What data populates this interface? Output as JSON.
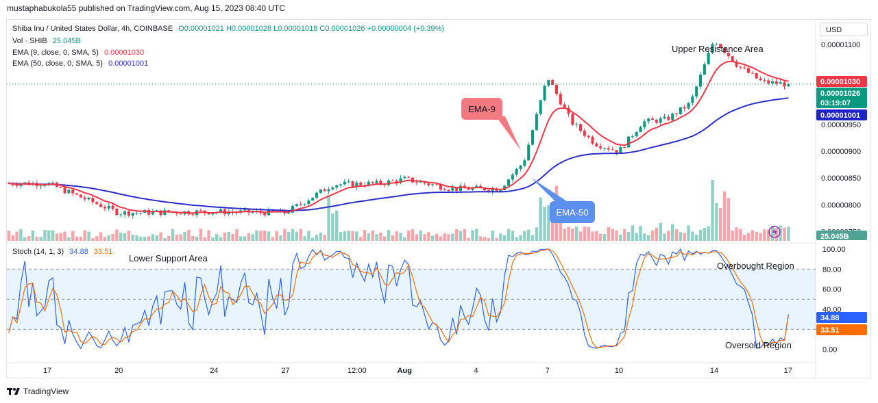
{
  "header": {
    "caption": "mustaphabukola55 published on TradingView.com, Aug 15, 2023 08:40 UTC"
  },
  "legend": {
    "symbol": "Shiba Inu / United States Dollar, 4h, COINBASE",
    "open": "O0.00001021",
    "high": "H0.00001028",
    "low": "L0.00001018",
    "close": "C0.00001026",
    "change": "+0.00000004 (+0.39%)",
    "vol_label": "Vol · SHIB",
    "vol_value": "25.045B",
    "ema9_label": "EMA (9, close, 0, SMA, 5)",
    "ema9_value": "0.00001030",
    "ema50_label": "EMA (50, close, 0, SMA, 5)",
    "ema50_value": "0.00001001",
    "stoch_label": "Stoch (14, 1, 3)",
    "stoch_k": "34.88",
    "stoch_d": "33.51"
  },
  "toolbar": {
    "currency": "USD"
  },
  "annotations": {
    "upper_resistance": "Upper Resistance Area",
    "lower_support": "Lower Support Area",
    "ema9_tag": "EMA-9",
    "ema50_tag": "EMA-50",
    "overbought": "Overbought Region",
    "oversold": "Oversold Region"
  },
  "price_badges": {
    "ema9": "0.00001030",
    "last": "0.00001026",
    "countdown": "03:19:07",
    "ema50": "0.00001001",
    "volume": "25.045B",
    "stoch_k": "34.88",
    "stoch_d": "33.51"
  },
  "footer": {
    "brand": "TradingView"
  },
  "colors": {
    "up": "#089981",
    "down": "#f23645",
    "ema9": "#f23645",
    "ema50": "#2a2ecd",
    "stoch_k": "#2962ff",
    "stoch_d": "#ff6d00",
    "band": "#2196f3"
  },
  "chart_data": [
    {
      "type": "candlestick",
      "timeframe": "4h",
      "x_ticks": [
        "17",
        "20",
        "24",
        "27",
        "12:00",
        "Aug",
        "4",
        "7",
        "10",
        "14",
        "17"
      ],
      "y_ticks": [
        "0.00000750",
        "0.00000800",
        "0.00000850",
        "0.00000900",
        "0.00000950",
        "0.00001100"
      ],
      "ylim": [
        7.35e-06,
        1.145e-05
      ],
      "approx_close_path": [
        {
          "t": 17,
          "close": 8.4e-06
        },
        {
          "t": 20,
          "close": 7.85e-06
        },
        {
          "t": 24,
          "close": 7.87e-06
        },
        {
          "t": 27,
          "close": 7.85e-06
        },
        {
          "t": 29,
          "close": 8.38e-06
        },
        {
          "t": 31,
          "close": 8.4e-06
        },
        {
          "t": 32,
          "close": 8.48e-06
        },
        {
          "t": 34,
          "close": 8.3e-06
        },
        {
          "t": 36,
          "close": 8.3e-06
        },
        {
          "t": 37,
          "close": 8.8e-06
        },
        {
          "t": 38,
          "close": 1.04e-05
        },
        {
          "t": 39,
          "close": 9.55e-06
        },
        {
          "t": 40,
          "close": 9.15e-06
        },
        {
          "t": 41,
          "close": 9e-06
        },
        {
          "t": 42,
          "close": 9.55e-06
        },
        {
          "t": 43,
          "close": 9.6e-06
        },
        {
          "t": 44,
          "close": 9.9e-06
        },
        {
          "t": 45,
          "close": 1.11e-05
        },
        {
          "t": 46,
          "close": 1.06e-05
        },
        {
          "t": 47,
          "close": 1.03e-05
        },
        {
          "t": 48,
          "close": 1.026e-05
        }
      ],
      "ema_series": [
        {
          "name": "EMA (9, close, 0, SMA, 5)",
          "last": 1.03e-05
        },
        {
          "name": "EMA (50, close, 0, SMA, 5)",
          "last": 1.001e-05
        }
      ]
    },
    {
      "type": "bar",
      "series": [
        {
          "name": "Vol · SHIB",
          "last": "25.045B"
        }
      ]
    },
    {
      "type": "line",
      "title": "Stoch (14, 1, 3)",
      "y_ticks": [
        "0.00",
        "20.00",
        "40.00",
        "60.00",
        "80.00",
        "100.00"
      ],
      "ylim": [
        -5,
        100
      ],
      "bands": [
        20,
        50,
        80
      ],
      "series": [
        {
          "name": "%K",
          "last": 34.88
        },
        {
          "name": "%D",
          "last": 33.51
        }
      ]
    }
  ]
}
